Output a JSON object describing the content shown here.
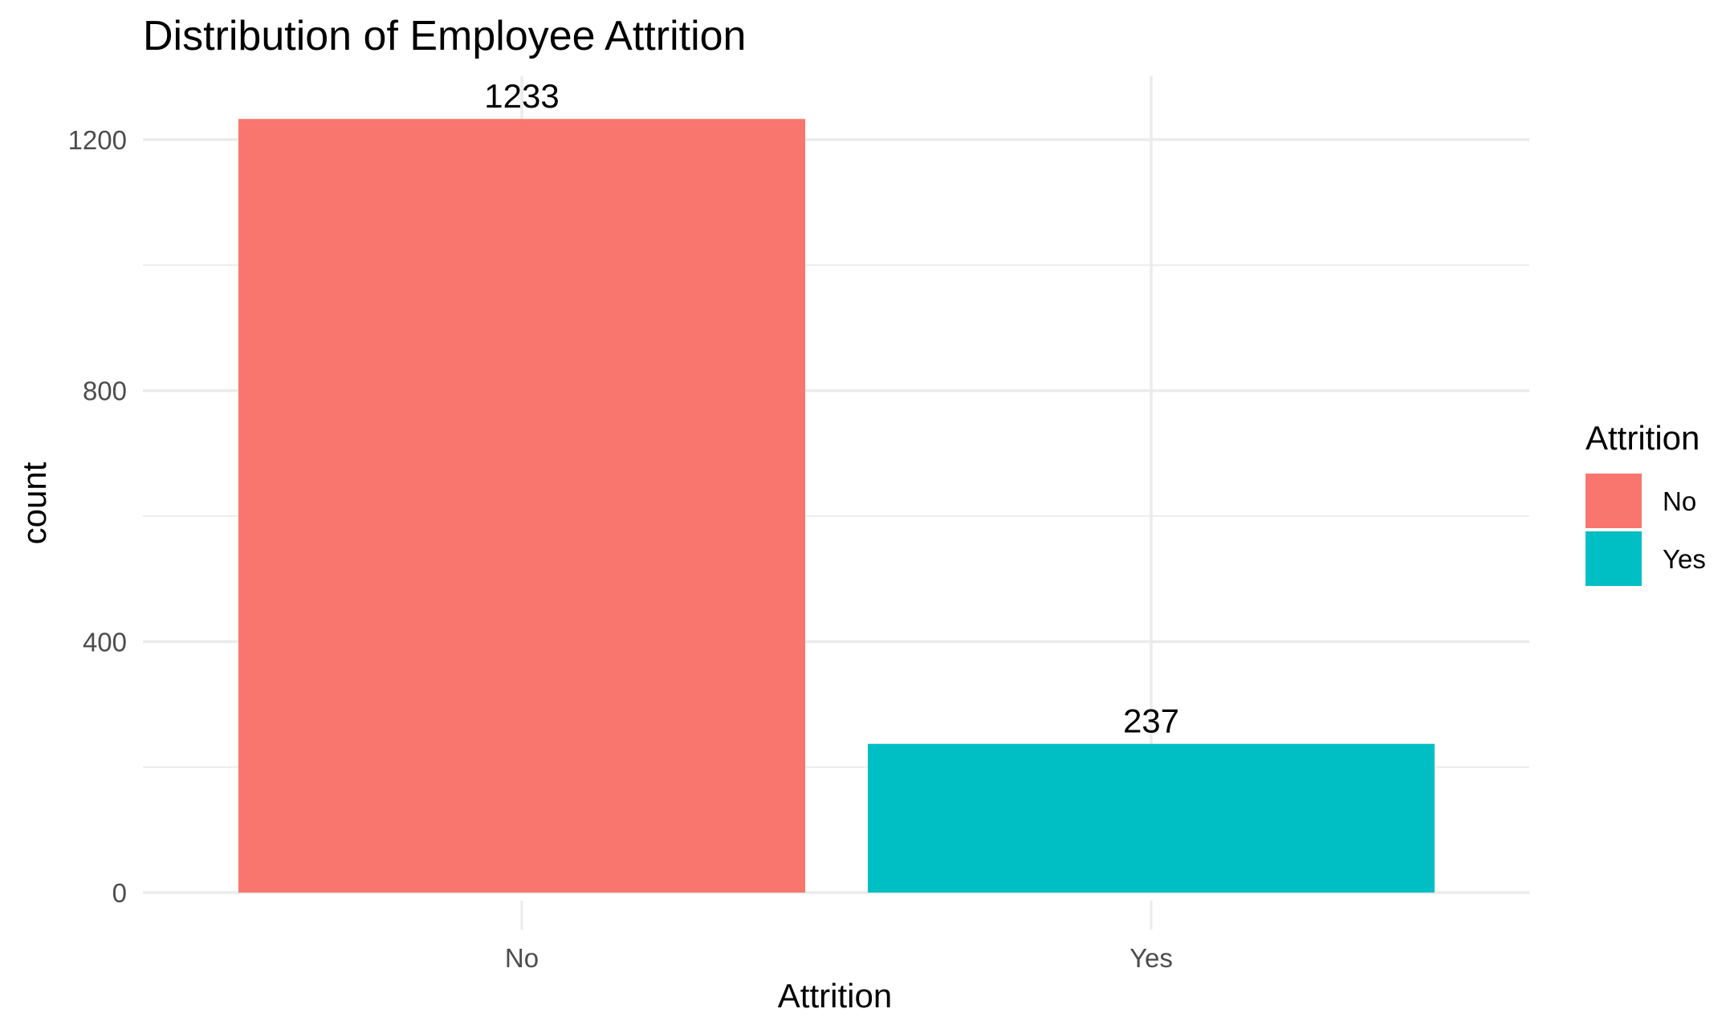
{
  "chart_data": {
    "type": "bar",
    "title": "Distribution of Employee Attrition",
    "xlabel": "Attrition",
    "ylabel": "count",
    "categories": [
      "No",
      "Yes"
    ],
    "values": [
      1233,
      237
    ],
    "data_labels": [
      "1233",
      "237"
    ],
    "ylim": [
      0,
      1300
    ],
    "yticks": [
      0,
      400,
      800,
      1200
    ],
    "ytick_labels": [
      "0",
      "400",
      "800",
      "1200"
    ],
    "grid": true,
    "legend": {
      "title": "Attrition",
      "position": "right",
      "entries": [
        {
          "label": "No",
          "color": "#F8766D"
        },
        {
          "label": "Yes",
          "color": "#00BFC4"
        }
      ]
    },
    "colors": [
      "#F8766D",
      "#00BFC4"
    ]
  }
}
